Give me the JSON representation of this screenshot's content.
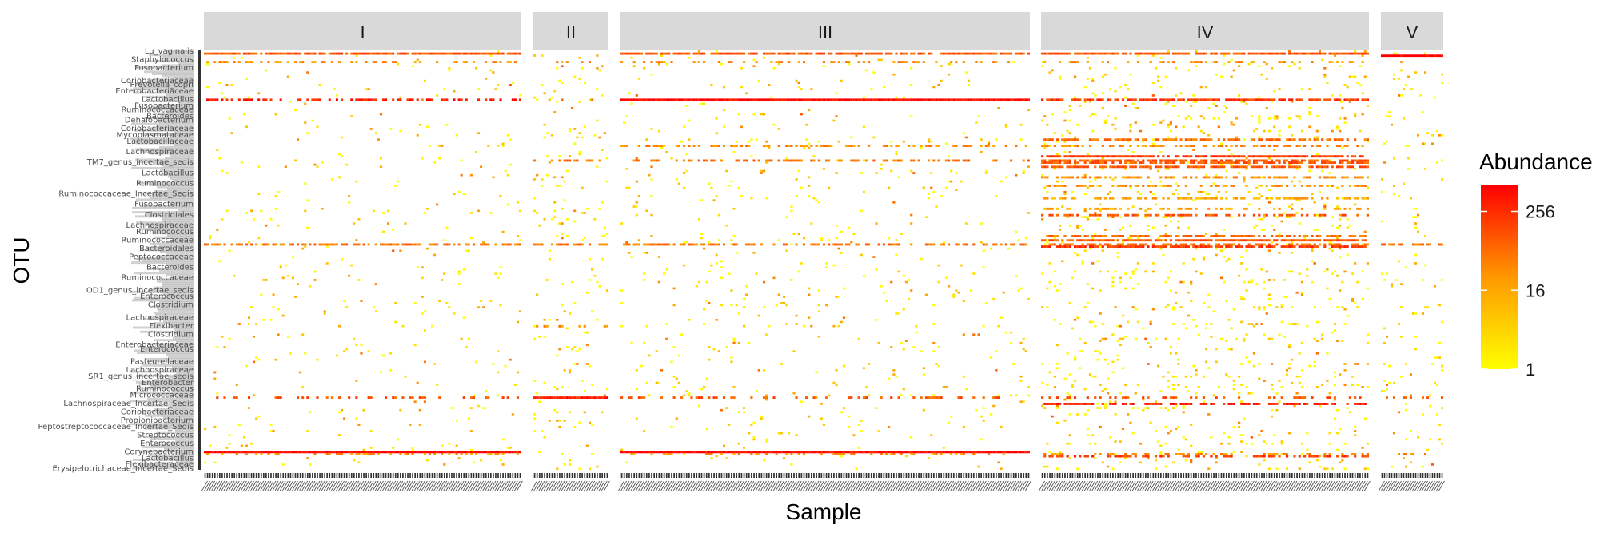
{
  "chart_data": {
    "type": "heatmap",
    "xlabel": "Sample",
    "ylabel": "OTU",
    "facets": [
      {
        "label": "I",
        "n_samples": 130,
        "seed": 11,
        "base_density": 0.022
      },
      {
        "label": "II",
        "n_samples": 30,
        "seed": 23,
        "base_density": 0.045
      },
      {
        "label": "III",
        "n_samples": 164,
        "seed": 37,
        "base_density": 0.03
      },
      {
        "label": "IV",
        "n_samples": 130,
        "seed": 51,
        "base_density": 0.07
      },
      {
        "label": "V",
        "n_samples": 26,
        "seed": 67,
        "base_density": 0.04
      }
    ],
    "n_otus": 200,
    "scale": {
      "type": "log2",
      "min": 1,
      "max": 512,
      "low_color": "#FFFF00",
      "high_color": "#FF0000"
    },
    "legend": {
      "title": "Abundance",
      "ticks": [
        1,
        16,
        256
      ],
      "position": "right"
    },
    "bands": [
      {
        "otu": 1,
        "facets": [
          0,
          2,
          3
        ],
        "density": 0.9,
        "level": 6
      },
      {
        "otu": 2,
        "facets": [
          4
        ],
        "density": 1.0,
        "level": 9
      },
      {
        "otu": 5,
        "facets": [
          0,
          1,
          2,
          3
        ],
        "density": 0.35,
        "level": 4
      },
      {
        "otu": 23,
        "facets": [
          2
        ],
        "density": 1.0,
        "level": 9
      },
      {
        "otu": 23,
        "facets": [
          0
        ],
        "density": 0.45,
        "level": 8
      },
      {
        "otu": 23,
        "facets": [
          3
        ],
        "density": 0.75,
        "level": 7
      },
      {
        "otu": 42,
        "facets": [
          3
        ],
        "density": 0.7,
        "level": 5
      },
      {
        "otu": 45,
        "facets": [
          2,
          3
        ],
        "density": 0.5,
        "level": 4
      },
      {
        "otu": 50,
        "facets": [
          3
        ],
        "density": 0.85,
        "level": 7
      },
      {
        "otu": 52,
        "facets": [
          1,
          2
        ],
        "density": 0.45,
        "level": 5
      },
      {
        "otu": 52,
        "facets": [
          3
        ],
        "density": 0.8,
        "level": 6
      },
      {
        "otu": 53,
        "facets": [
          3
        ],
        "density": 0.7,
        "level": 6
      },
      {
        "otu": 55,
        "facets": [
          3
        ],
        "density": 0.75,
        "level": 6
      },
      {
        "otu": 60,
        "facets": [
          3
        ],
        "density": 0.55,
        "level": 4
      },
      {
        "otu": 64,
        "facets": [
          3
        ],
        "density": 0.5,
        "level": 4
      },
      {
        "otu": 70,
        "facets": [
          3
        ],
        "density": 0.55,
        "level": 3
      },
      {
        "otu": 75,
        "facets": [
          3
        ],
        "density": 0.45,
        "level": 3
      },
      {
        "otu": 78,
        "facets": [
          3
        ],
        "density": 0.6,
        "level": 6
      },
      {
        "otu": 88,
        "facets": [
          3
        ],
        "density": 0.65,
        "level": 5
      },
      {
        "otu": 90,
        "facets": [
          3
        ],
        "density": 0.9,
        "level": 6
      },
      {
        "otu": 92,
        "facets": [
          0,
          1,
          2,
          3,
          4
        ],
        "density": 0.6,
        "level": 5
      },
      {
        "otu": 93,
        "facets": [
          3
        ],
        "density": 0.75,
        "level": 7
      },
      {
        "otu": 131,
        "facets": [
          1
        ],
        "density": 0.35,
        "level": 4
      },
      {
        "otu": 165,
        "facets": [
          1
        ],
        "density": 1.0,
        "level": 8
      },
      {
        "otu": 165,
        "facets": [
          0,
          2,
          3,
          4
        ],
        "density": 0.3,
        "level": 6
      },
      {
        "otu": 168,
        "facets": [
          3
        ],
        "density": 0.6,
        "level": 8
      },
      {
        "otu": 191,
        "facets": [
          0,
          2
        ],
        "density": 1.0,
        "level": 9
      },
      {
        "otu": 193,
        "facets": [
          3
        ],
        "density": 0.5,
        "level": 7
      },
      {
        "otu": 192,
        "facets": [
          0,
          2,
          3,
          4
        ],
        "density": 0.3,
        "level": 4
      }
    ],
    "y_tick_labels": [
      {
        "otu": 0,
        "text": "Lu_vaginalis"
      },
      {
        "otu": 4,
        "text": "Staphylococcus"
      },
      {
        "otu": 8,
        "text": "Fusobacterium"
      },
      {
        "otu": 14,
        "text": "Coriobacteriaceae"
      },
      {
        "otu": 16,
        "text": "Prevotella_copri"
      },
      {
        "otu": 19,
        "text": "Enterobacteriaceae"
      },
      {
        "otu": 23,
        "text": "Lactobacillus"
      },
      {
        "otu": 26,
        "text": "Fusobacterium"
      },
      {
        "otu": 28,
        "text": "Ruminococcaceae"
      },
      {
        "otu": 31,
        "text": "Bacteroides"
      },
      {
        "otu": 33,
        "text": "Dehalobacterium"
      },
      {
        "otu": 37,
        "text": "Coriobacteriaceae"
      },
      {
        "otu": 40,
        "text": "Mycoplasmataceae"
      },
      {
        "otu": 43,
        "text": "Lactobacillaceae"
      },
      {
        "otu": 48,
        "text": "Lachnospiraceae"
      },
      {
        "otu": 53,
        "text": "TM7_genus_incertae_sedis"
      },
      {
        "otu": 58,
        "text": "Lactobacillus"
      },
      {
        "otu": 63,
        "text": "Ruminococcus"
      },
      {
        "otu": 68,
        "text": "Ruminococcaceae_Incertae_Sedis"
      },
      {
        "otu": 73,
        "text": "Fusobacterium"
      },
      {
        "otu": 78,
        "text": "Clostridiales"
      },
      {
        "otu": 83,
        "text": "Lachnospiraceae"
      },
      {
        "otu": 86,
        "text": "Ruminococcus"
      },
      {
        "otu": 90,
        "text": "Ruminococcaceae"
      },
      {
        "otu": 94,
        "text": "Bacteroidales"
      },
      {
        "otu": 98,
        "text": "Peptococcaceae"
      },
      {
        "otu": 103,
        "text": "Bacteroides"
      },
      {
        "otu": 108,
        "text": "Ruminococcaceae"
      },
      {
        "otu": 114,
        "text": "OD1_genus_incertae_sedis"
      },
      {
        "otu": 117,
        "text": "Enterococcus"
      },
      {
        "otu": 121,
        "text": "Clostridium"
      },
      {
        "otu": 127,
        "text": "Lachnospiraceae"
      },
      {
        "otu": 131,
        "text": "Flexibacter"
      },
      {
        "otu": 135,
        "text": "Clostridium"
      },
      {
        "otu": 140,
        "text": "Enterobacteriaceae"
      },
      {
        "otu": 142,
        "text": "Enterococcus"
      },
      {
        "otu": 148,
        "text": "Pasteurellaceae"
      },
      {
        "otu": 152,
        "text": "Lachnospiraceae"
      },
      {
        "otu": 155,
        "text": "SR1_genus_incertae_sedis"
      },
      {
        "otu": 158,
        "text": "Enterobacter"
      },
      {
        "otu": 161,
        "text": "Ruminococcus"
      },
      {
        "otu": 164,
        "text": "Micrococcaceae"
      },
      {
        "otu": 168,
        "text": "Lachnospiraceae_Incertae_Sedis"
      },
      {
        "otu": 172,
        "text": "Coriobacteriaceae"
      },
      {
        "otu": 176,
        "text": "Propionibacterium"
      },
      {
        "otu": 179,
        "text": "Peptostreptococcaceae_Incertae_Sedis"
      },
      {
        "otu": 183,
        "text": "Streptococcus"
      },
      {
        "otu": 187,
        "text": "Enterococcus"
      },
      {
        "otu": 191,
        "text": "Corynebacterium"
      },
      {
        "otu": 194,
        "text": "Lactobacillus"
      },
      {
        "otu": 197,
        "text": "Flexibacteraceae"
      },
      {
        "otu": 199,
        "text": "Erysipelotrichaceae_Incertae_Sedis"
      }
    ]
  }
}
